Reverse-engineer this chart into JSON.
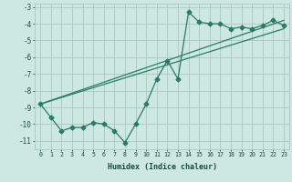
{
  "title": "",
  "xlabel": "Humidex (Indice chaleur)",
  "ylabel": "",
  "xlim": [
    -0.5,
    23.5
  ],
  "ylim": [
    -11.5,
    -2.8
  ],
  "yticks": [
    -11,
    -10,
    -9,
    -8,
    -7,
    -6,
    -5,
    -4,
    -3
  ],
  "xticks": [
    0,
    1,
    2,
    3,
    4,
    5,
    6,
    7,
    8,
    9,
    10,
    11,
    12,
    13,
    14,
    15,
    16,
    17,
    18,
    19,
    20,
    21,
    22,
    23
  ],
  "background_color": "#cce8e0",
  "grid_color": "#aac8c0",
  "line_color": "#2a7a6a",
  "line1_x": [
    0,
    1,
    2,
    3,
    4,
    5,
    6,
    7,
    8,
    9,
    10,
    11,
    12,
    13,
    14,
    15,
    16,
    17,
    18,
    19,
    20,
    21,
    22,
    23
  ],
  "line1_y": [
    -8.8,
    -9.6,
    -10.4,
    -10.2,
    -10.2,
    -9.9,
    -10.0,
    -10.4,
    -11.1,
    -10.0,
    -8.8,
    -7.3,
    -6.2,
    -7.3,
    -3.3,
    -3.9,
    -4.0,
    -4.0,
    -4.3,
    -4.2,
    -4.3,
    -4.1,
    -3.8,
    -4.1
  ],
  "line2_x": [
    0,
    23
  ],
  "line2_y": [
    -8.8,
    -3.8
  ],
  "line3_x": [
    0,
    23
  ],
  "line3_y": [
    -8.8,
    -4.3
  ],
  "marker": "D",
  "markersize": 2.5,
  "linewidth": 0.9
}
